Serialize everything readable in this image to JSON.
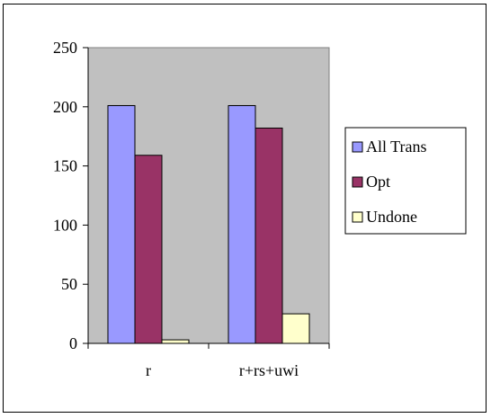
{
  "chart_data": {
    "type": "bar",
    "categories": [
      "r",
      "r+rs+uwi"
    ],
    "series": [
      {
        "name": "All Trans",
        "values": [
          201,
          201
        ]
      },
      {
        "name": "Opt",
        "values": [
          159,
          182
        ]
      },
      {
        "name": "Undone",
        "values": [
          3,
          25
        ]
      }
    ],
    "ylim": [
      0,
      250
    ],
    "yticks": [
      0,
      50,
      100,
      150,
      200,
      250
    ],
    "grid": false,
    "legend_placement": "right",
    "colors": {
      "plot_background": "#c0c0c0",
      "series": [
        "#9999ff",
        "#993366",
        "#ffffcc"
      ]
    }
  }
}
